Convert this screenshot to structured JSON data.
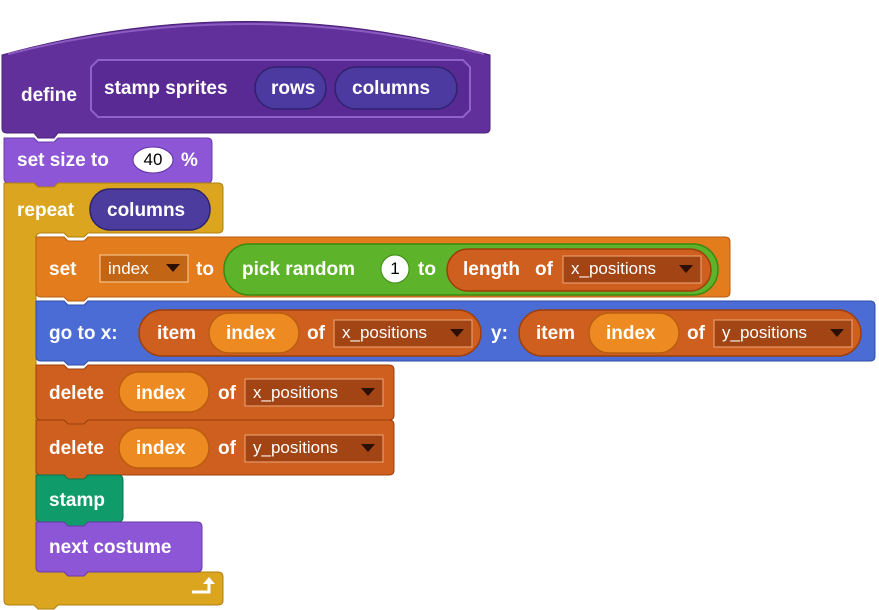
{
  "define_block": {
    "keyword": "define",
    "custom_name": "stamp sprites",
    "params": [
      "rows",
      "columns"
    ]
  },
  "set_size_block": {
    "label": "set size to",
    "value": "40",
    "unit": "%"
  },
  "repeat_block": {
    "label": "repeat",
    "arg": "columns"
  },
  "set_var_block": {
    "label": "set",
    "variable": "index",
    "to_label": "to",
    "pick_random": {
      "label": "pick random",
      "from": "1",
      "to_label": "to"
    },
    "length": {
      "label": "length",
      "of_label": "of",
      "list": "x_positions"
    }
  },
  "goto_block": {
    "label": "go to x:",
    "x_item": {
      "label": "item",
      "index": "index",
      "of_label": "of",
      "list": "x_positions"
    },
    "y_label": "y:",
    "y_item": {
      "label": "item",
      "index": "index",
      "of_label": "of",
      "list": "y_positions"
    }
  },
  "delete_x_block": {
    "label": "delete",
    "index": "index",
    "of_label": "of",
    "list": "x_positions"
  },
  "delete_y_block": {
    "label": "delete",
    "index": "index",
    "of_label": "of",
    "list": "y_positions"
  },
  "stamp_block": {
    "label": "stamp"
  },
  "next_costume_block": {
    "label": "next costume"
  },
  "icons": {
    "loop_arrow": "loop-arrow-icon",
    "dropdown": "dropdown-arrow-icon"
  },
  "colors": {
    "custom_block": "#5f2d99",
    "custom_param": "#4a3fa0",
    "looks": "#8c55d6",
    "control": "#d9a620",
    "variables": "#e07a1e",
    "operators": "#5cb527",
    "motion": "#4a6cd4",
    "lists": "#cf5e1e",
    "pen": "#0f9b6a"
  }
}
